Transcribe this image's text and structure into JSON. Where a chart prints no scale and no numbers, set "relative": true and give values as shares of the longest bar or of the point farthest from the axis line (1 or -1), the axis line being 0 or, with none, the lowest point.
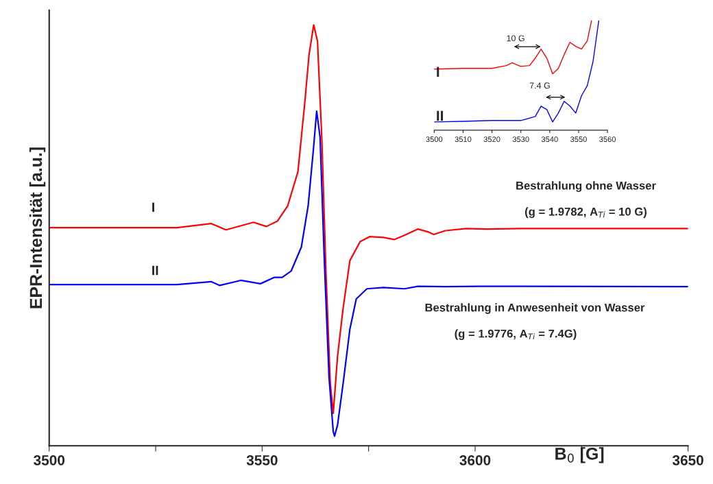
{
  "chart_data": [
    {
      "type": "line",
      "relative": true,
      "xlabel": "B$_{0}$ [G]",
      "ylabel": "EPR-Intensität [a.u.]",
      "xlim": [
        3500,
        3650
      ],
      "xticks": [
        3500,
        {
          "value": 3525,
          "label": null
        },
        3550,
        {
          "value": 3575,
          "label": null
        },
        3600,
        {
          "value": 3625,
          "label": null
        },
        3650
      ],
      "grid": false,
      "legend": false,
      "marker": "none",
      "line_style": "solid",
      "annotations": [
        "I",
        "II",
        "Bestrahlung ohne Wasser",
        "(g = 1.9782, A$_{Ti}$ = 10 G)",
        "Bestrahlung in Anwesenheit von Wasser",
        "(g = 1.9776, A$_{Ti}$ = 7.4G)"
      ],
      "series": [
        {
          "color": "#ff0000",
          "x": [
            3500,
            3520,
            3530,
            3538,
            3541.5,
            3548,
            3551,
            3553.6,
            3556,
            3558.4,
            3560,
            3561,
            3562.1,
            3563,
            3564,
            3565,
            3566,
            3566.7,
            3567.7,
            3569,
            3570.6,
            3573,
            3575.3,
            3578.5,
            3581,
            3583.4,
            3586.6,
            3589,
            3590.3,
            3593,
            3597.9,
            3602.7,
            3610.7,
            3650
          ],
          "values": [
            0.518,
            0.518,
            0.518,
            0.528,
            0.513,
            0.531,
            0.521,
            0.534,
            0.57,
            0.651,
            0.814,
            0.928,
            1.0,
            0.961,
            0.733,
            0.407,
            0.147,
            0.077,
            0.212,
            0.326,
            0.44,
            0.485,
            0.497,
            0.495,
            0.49,
            0.5,
            0.515,
            0.508,
            0.502,
            0.511,
            0.516,
            0.515,
            0.516,
            0.516
          ]
        },
        {
          "color": "#0000ff",
          "x": [
            3500,
            3520,
            3530,
            3538,
            3540,
            3545,
            3549.6,
            3552.8,
            3554.7,
            3556.8,
            3559.2,
            3560.8,
            3562,
            3562.8,
            3563.6,
            3564.6,
            3565.7,
            3566.7,
            3567,
            3567.7,
            3569,
            3570.6,
            3572.1,
            3574.6,
            3578.5,
            3583.4,
            3586.6,
            3593,
            3601,
            3650
          ],
          "values": [
            0.383,
            0.383,
            0.383,
            0.39,
            0.381,
            0.393,
            0.385,
            0.4,
            0.4,
            0.415,
            0.472,
            0.57,
            0.7,
            0.795,
            0.733,
            0.44,
            0.163,
            0.033,
            0.023,
            0.049,
            0.147,
            0.277,
            0.349,
            0.373,
            0.376,
            0.373,
            0.379,
            0.378,
            0.379,
            0.378
          ]
        }
      ]
    },
    {
      "type": "line",
      "relative": true,
      "xlim": [
        3500,
        3560
      ],
      "xticks": [
        3500,
        3510,
        3520,
        3530,
        3540,
        3550,
        3560
      ],
      "grid": false,
      "legend": false,
      "marker": "none",
      "line_style": "solid",
      "annotations": [
        "I",
        "II",
        "10 G",
        "7.4 G"
      ],
      "series": [
        {
          "color": "#ff0000",
          "x": [
            3500,
            3510,
            3520,
            3525,
            3527,
            3530,
            3533,
            3535,
            3537,
            3539,
            3541,
            3543,
            3545,
            3547,
            3549,
            3551,
            3553,
            3554.5
          ],
          "values": [
            0.556,
            0.5625,
            0.5625,
            0.588,
            0.613,
            0.581,
            0.588,
            0.656,
            0.738,
            0.656,
            0.513,
            0.5625,
            0.688,
            0.8,
            0.763,
            0.738,
            0.813,
            1.0
          ]
        },
        {
          "color": "#0000ff",
          "x": [
            3500,
            3510,
            3520,
            3530,
            3535,
            3537,
            3539,
            3541,
            3543,
            3545,
            3547,
            3549,
            3551,
            3553,
            3555,
            3557
          ],
          "values": [
            0.075,
            0.081,
            0.088,
            0.088,
            0.125,
            0.219,
            0.188,
            0.075,
            0.156,
            0.263,
            0.219,
            0.156,
            0.313,
            0.406,
            0.625,
            1.0
          ]
        }
      ]
    }
  ]
}
